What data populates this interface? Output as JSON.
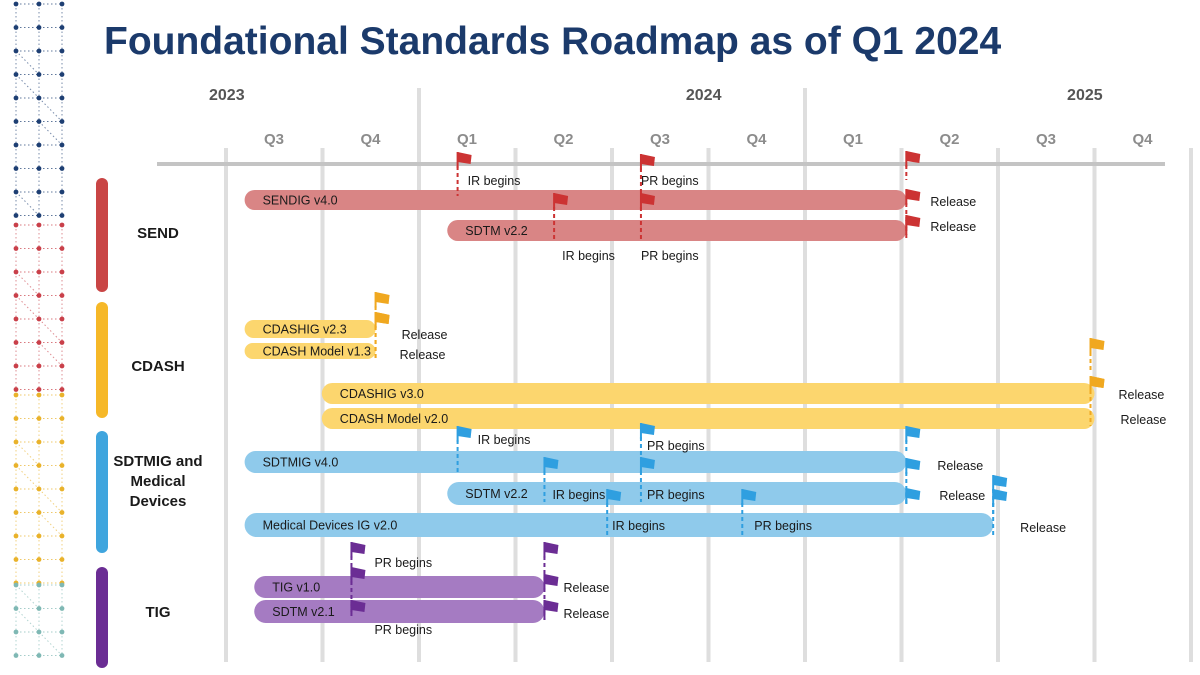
{
  "title": "Foundational Standards Roadmap as of Q1 2024",
  "colors": {
    "title": "#1b3a6b",
    "grid": "#dedede",
    "axis": "#c4c4c4",
    "send_bar": "#d98585",
    "send_group": "#c94545",
    "send_flag": "#cc3333",
    "cdash_bar": "#fcd66e",
    "cdash_group": "#f6b828",
    "cdash_flag": "#f0a820",
    "sdtm_bar": "#8fcaeb",
    "sdtm_group": "#3fa5de",
    "sdtm_flag": "#2f9fe0",
    "tig_bar": "#a57bc2",
    "tig_group": "#6b2d94",
    "tig_flag": "#6b2d94"
  },
  "years": [
    {
      "label": "2023",
      "x": 0.7
    },
    {
      "label": "2024",
      "x": 4.95
    },
    {
      "label": "2025",
      "x": 8.9
    }
  ],
  "quarters": [
    "Q3",
    "Q4",
    "Q1",
    "Q2",
    "Q3",
    "Q4",
    "Q1",
    "Q2",
    "Q3",
    "Q4"
  ],
  "year_dividers": [
    2,
    6
  ],
  "groups": [
    {
      "label_lines": [
        "SEND"
      ],
      "color_key": "send_group"
    },
    {
      "label_lines": [
        "CDASH"
      ],
      "color_key": "cdash_group"
    },
    {
      "label_lines": [
        "SDTMIG and",
        "Medical",
        "Devices"
      ],
      "color_key": "sdtm_group"
    },
    {
      "label_lines": [
        "TIG"
      ],
      "color_key": "tig_group"
    }
  ],
  "bars": [
    {
      "label": "SENDIG v4.0",
      "start": 0.4,
      "end": 7.05,
      "color_key": "send_bar"
    },
    {
      "label": "SDTM v2.2",
      "start": 2.5,
      "end": 7.05,
      "color_key": "send_bar"
    },
    {
      "label": "CDASHIG v2.3",
      "start": 0.4,
      "end": 1.55,
      "color_key": "cdash_bar"
    },
    {
      "label": "CDASH Model v1.3",
      "start": 0.4,
      "end": 1.55,
      "color_key": "cdash_bar"
    },
    {
      "label": "CDASHIG v3.0",
      "start": 1.2,
      "end": 9.0,
      "color_key": "cdash_bar"
    },
    {
      "label": "CDASH Model v2.0",
      "start": 1.2,
      "end": 9.0,
      "color_key": "cdash_bar"
    },
    {
      "label": "SDTMIG v4.0",
      "start": 0.4,
      "end": 7.05,
      "color_key": "sdtm_bar"
    },
    {
      "label": "SDTM v2.2",
      "start": 2.5,
      "end": 7.05,
      "color_key": "sdtm_bar"
    },
    {
      "label": "Medical Devices IG v2.0",
      "start": 0.4,
      "end": 7.95,
      "color_key": "sdtm_bar"
    },
    {
      "label": "TIG v1.0",
      "start": 0.5,
      "end": 3.3,
      "color_key": "tig_bar"
    },
    {
      "label": "SDTM v2.1",
      "start": 0.5,
      "end": 3.3,
      "color_key": "tig_bar"
    }
  ],
  "milestones": [
    {
      "x": 2.4,
      "color_key": "send_flag",
      "label": "IR begins"
    },
    {
      "x": 4.3,
      "color_key": "send_flag",
      "label": "PR begins"
    },
    {
      "x": 7.05,
      "color_key": "send_flag",
      "label": ""
    },
    {
      "x": 7.05,
      "color_key": "send_flag",
      "label": "Release"
    },
    {
      "x": 3.4,
      "color_key": "send_flag",
      "label": "IR begins"
    },
    {
      "x": 4.3,
      "color_key": "send_flag",
      "label": "PR begins"
    },
    {
      "x": 7.05,
      "color_key": "send_flag",
      "label": "Release"
    },
    {
      "x": 1.55,
      "color_key": "cdash_flag",
      "label": ""
    },
    {
      "x": 1.55,
      "color_key": "cdash_flag",
      "label": "Release"
    },
    {
      "x": 1.55,
      "color_key": "cdash_flag",
      "label": "Release"
    },
    {
      "x": 9.0,
      "color_key": "cdash_flag",
      "label": ""
    },
    {
      "x": 9.0,
      "color_key": "cdash_flag",
      "label": "Release"
    },
    {
      "x": 9.0,
      "color_key": "cdash_flag",
      "label": "Release"
    },
    {
      "x": 2.4,
      "color_key": "sdtm_flag",
      "label": "IR begins"
    },
    {
      "x": 4.3,
      "color_key": "sdtm_flag",
      "label": "PR begins"
    },
    {
      "x": 7.05,
      "color_key": "sdtm_flag",
      "label": ""
    },
    {
      "x": 7.05,
      "color_key": "sdtm_flag",
      "label": "Release"
    },
    {
      "x": 3.3,
      "color_key": "sdtm_flag",
      "label": "IR begins"
    },
    {
      "x": 4.3,
      "color_key": "sdtm_flag",
      "label": "PR begins"
    },
    {
      "x": 7.05,
      "color_key": "sdtm_flag",
      "label": "Release"
    },
    {
      "x": 7.95,
      "color_key": "sdtm_flag",
      "label": ""
    },
    {
      "x": 3.95,
      "color_key": "sdtm_flag",
      "label": "IR begins"
    },
    {
      "x": 5.35,
      "color_key": "sdtm_flag",
      "label": "PR begins"
    },
    {
      "x": 7.95,
      "color_key": "sdtm_flag",
      "label": "Release"
    },
    {
      "x": 1.3,
      "color_key": "tig_flag",
      "label": "PR begins"
    },
    {
      "x": 3.3,
      "color_key": "tig_flag",
      "label": ""
    },
    {
      "x": 1.3,
      "color_key": "tig_flag",
      "label": ""
    },
    {
      "x": 3.3,
      "color_key": "tig_flag",
      "label": "Release"
    },
    {
      "x": 1.3,
      "color_key": "tig_flag",
      "label": "PR begins"
    },
    {
      "x": 3.3,
      "color_key": "tig_flag",
      "label": "Release"
    }
  ]
}
